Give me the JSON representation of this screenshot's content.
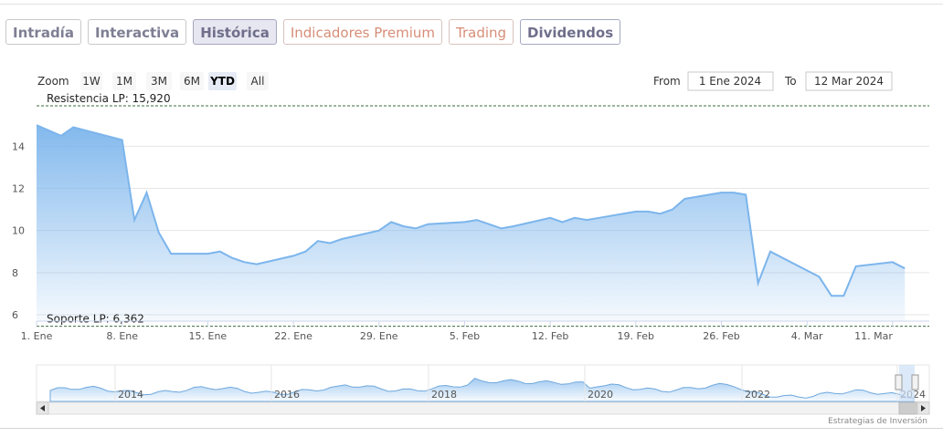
{
  "tabs": [
    "Intradía",
    "Interactiva",
    "Histórica",
    "Indicadores Premium",
    "Trading",
    "Dividendos"
  ],
  "zoom": {
    "label": "Zoom",
    "buttons": [
      "1W",
      "1M",
      "3M",
      "6M",
      "YTD",
      "All"
    ],
    "active": "YTD"
  },
  "range": {
    "from_label": "From",
    "from_value": "1 Ene 2024",
    "to_label": "To",
    "to_value": "12 Mar 2024"
  },
  "credit": "Estrategias de Inversión",
  "colors": {
    "line": "#7cb5ec",
    "band_line": "#3a6b3a"
  },
  "chart_data": {
    "type": "area",
    "x_labels": [
      "1. Ene",
      "8. Ene",
      "15. Ene",
      "22. Ene",
      "29. Ene",
      "5. Feb",
      "12. Feb",
      "19. Feb",
      "26. Feb",
      "4. Mar",
      "11. Mar"
    ],
    "y_ticks": [
      6,
      8,
      10,
      12,
      14
    ],
    "ylim": [
      6,
      15.92
    ],
    "x": [
      "2024-01-01",
      "2024-01-03",
      "2024-01-04",
      "2024-01-08",
      "2024-01-09",
      "2024-01-10",
      "2024-01-11",
      "2024-01-12",
      "2024-01-15",
      "2024-01-16",
      "2024-01-17",
      "2024-01-18",
      "2024-01-19",
      "2024-01-22",
      "2024-01-23",
      "2024-01-24",
      "2024-01-25",
      "2024-01-26",
      "2024-01-29",
      "2024-01-30",
      "2024-01-31",
      "2024-02-01",
      "2024-02-02",
      "2024-02-05",
      "2024-02-06",
      "2024-02-07",
      "2024-02-08",
      "2024-02-09",
      "2024-02-12",
      "2024-02-13",
      "2024-02-14",
      "2024-02-15",
      "2024-02-16",
      "2024-02-19",
      "2024-02-20",
      "2024-02-21",
      "2024-02-22",
      "2024-02-23",
      "2024-02-26",
      "2024-02-27",
      "2024-02-28",
      "2024-02-29",
      "2024-03-01",
      "2024-03-04",
      "2024-03-05",
      "2024-03-06",
      "2024-03-07",
      "2024-03-08",
      "2024-03-11",
      "2024-03-12"
    ],
    "values": [
      15.0,
      14.5,
      14.9,
      14.3,
      10.5,
      11.8,
      9.9,
      8.9,
      8.9,
      9.0,
      8.7,
      8.5,
      8.4,
      8.8,
      9.0,
      9.5,
      9.4,
      9.6,
      10.0,
      10.4,
      10.2,
      10.1,
      10.3,
      10.4,
      10.5,
      10.3,
      10.1,
      10.2,
      10.6,
      10.4,
      10.6,
      10.5,
      10.6,
      10.9,
      10.9,
      10.8,
      11.0,
      11.5,
      11.8,
      11.8,
      11.7,
      7.5,
      9.0,
      8.1,
      7.8,
      6.9,
      6.9,
      8.3,
      8.5,
      8.2
    ],
    "resistance": {
      "label": "Resistencia LP: 15,920",
      "value": 15.92
    },
    "support": {
      "label": "Soporte LP: 6,362",
      "value": 6.362
    },
    "grid": true,
    "legend": "none",
    "navigator": {
      "year_labels": [
        "2014",
        "2016",
        "2018",
        "2020",
        "2022",
        "2024"
      ]
    }
  }
}
